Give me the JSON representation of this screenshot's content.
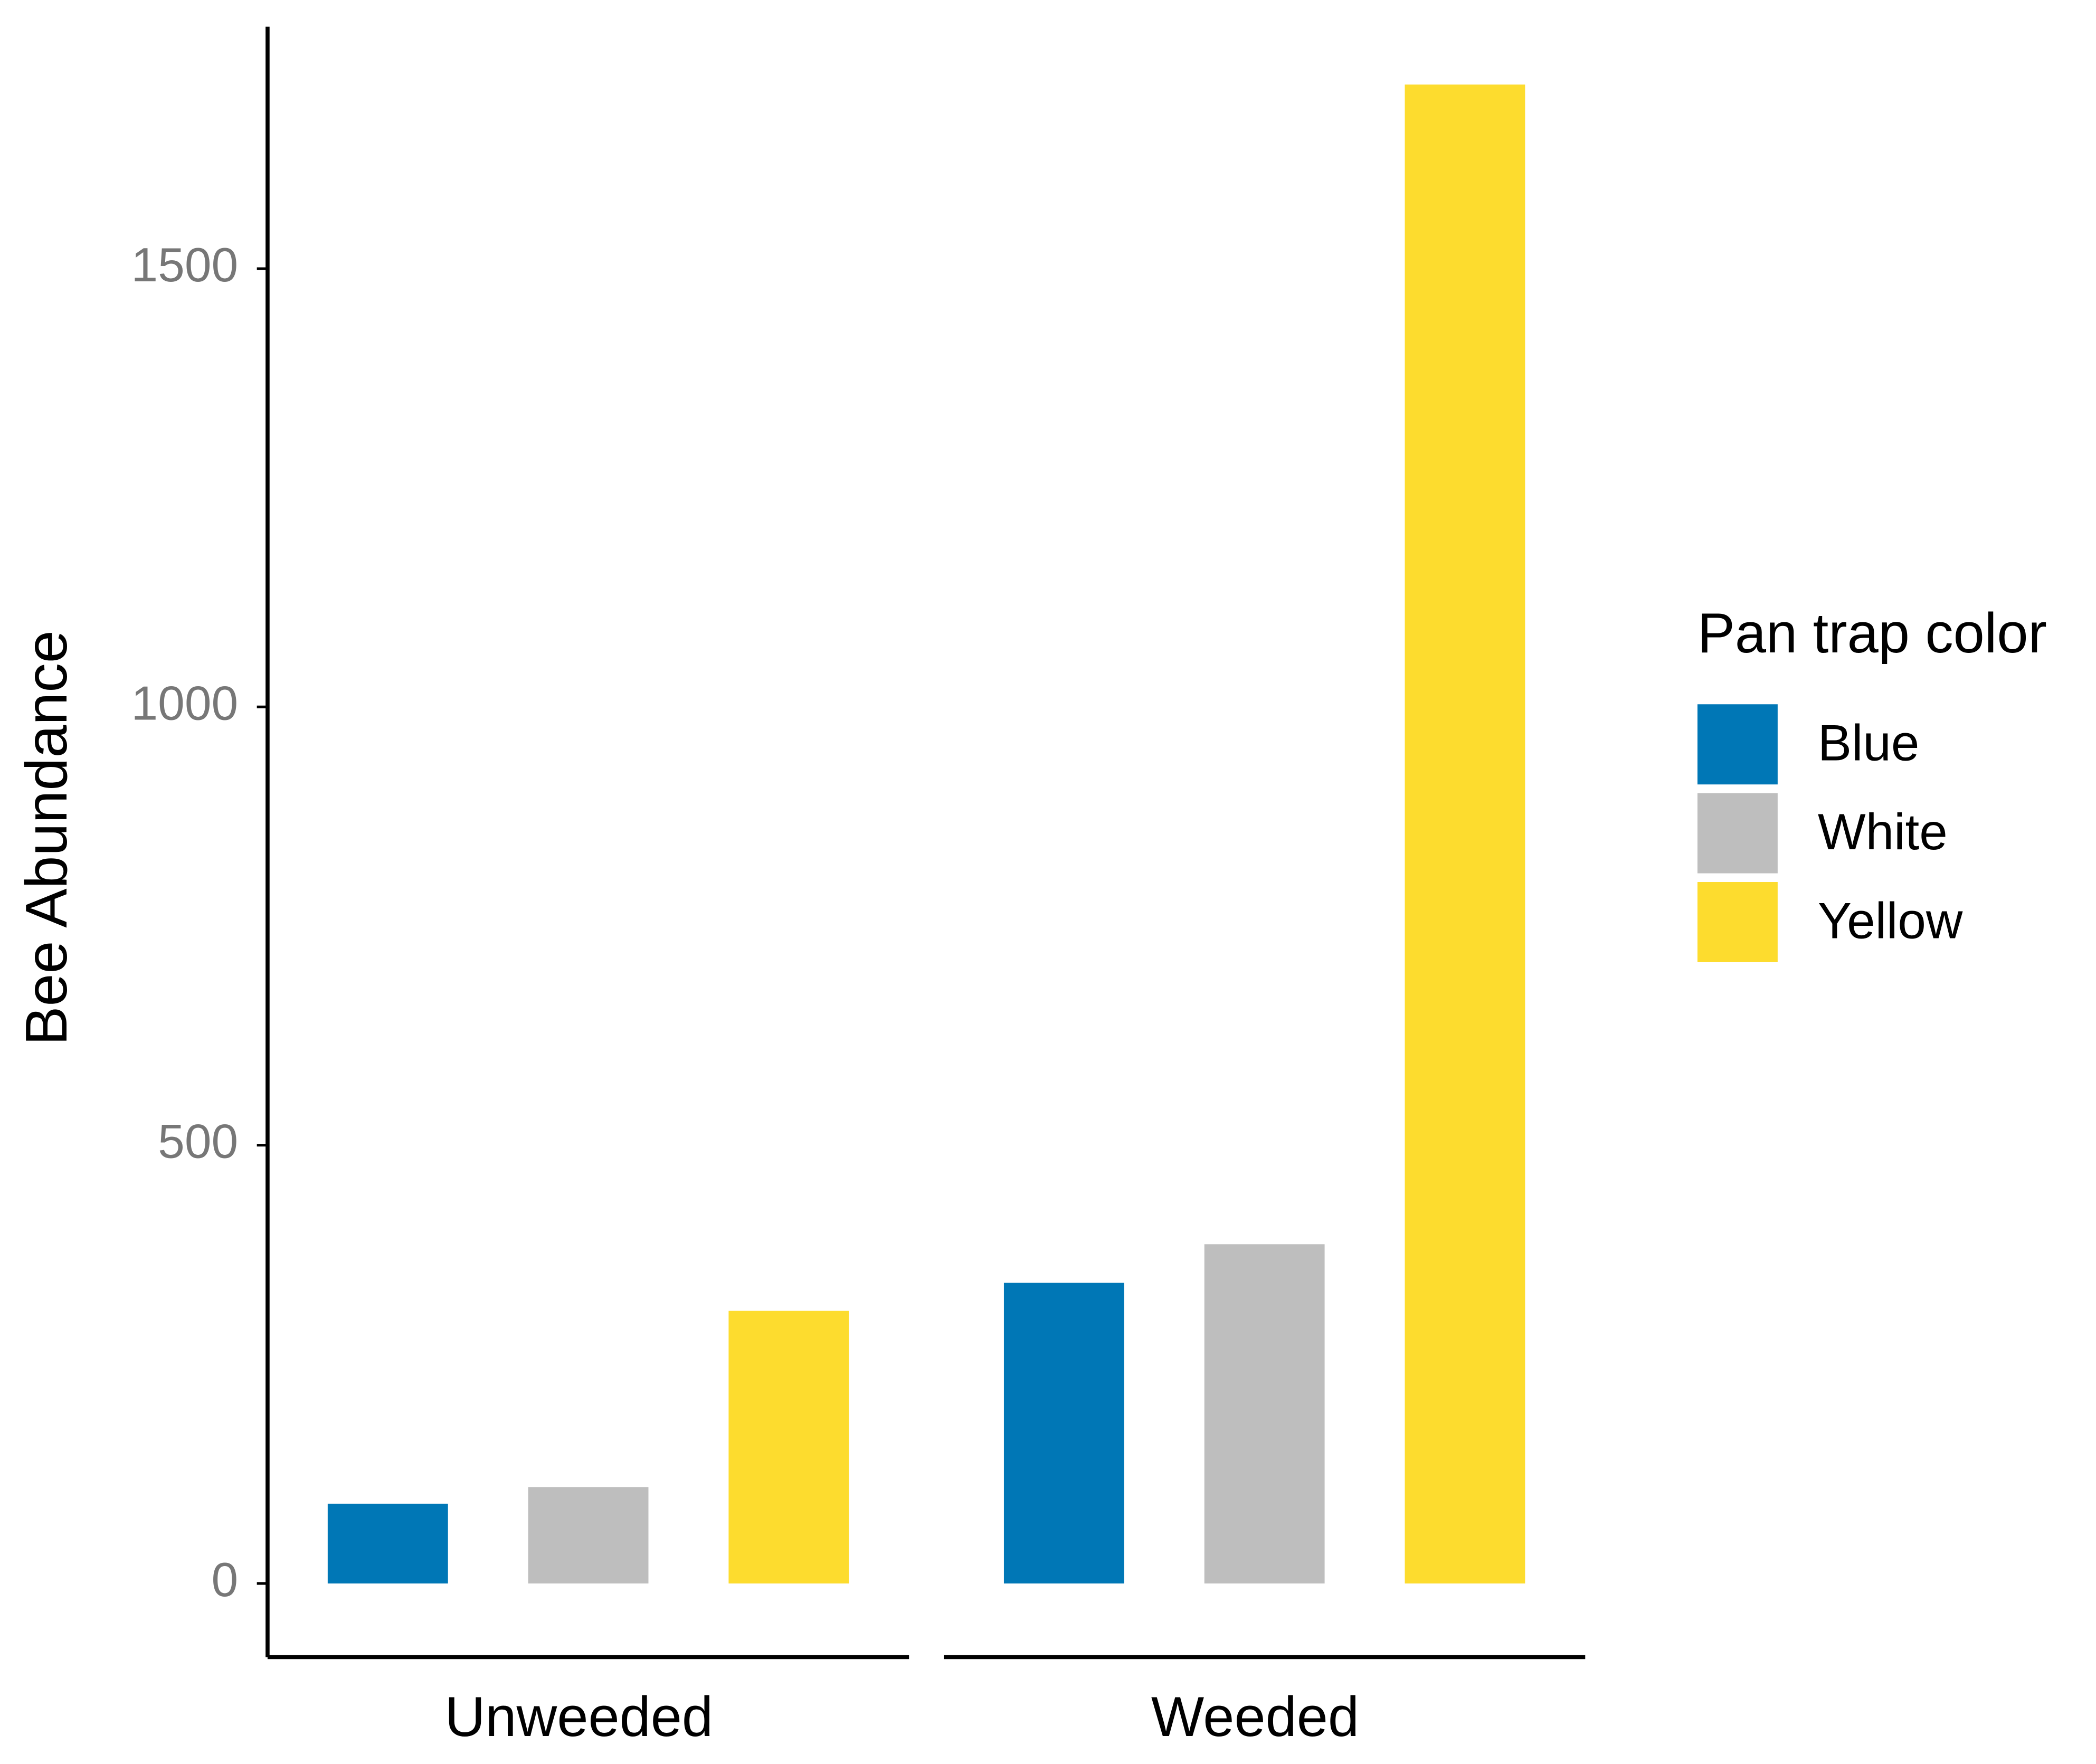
{
  "chart_data": {
    "type": "bar",
    "y_label": "Bee Abundance",
    "categories": [
      "Unweeded",
      "Weeded"
    ],
    "series": [
      {
        "name": "Blue",
        "color": "#0077b6",
        "values": [
          91,
          343
        ]
      },
      {
        "name": "White",
        "color": "#bebebe",
        "values": [
          110,
          387
        ]
      },
      {
        "name": "Yellow",
        "color": "#fddc2e",
        "values": [
          311,
          1710
        ]
      }
    ],
    "ylim": [
      -84,
      1776
    ],
    "yticks": [
      0,
      500,
      1000,
      1500
    ],
    "legend_title": "Pan trap color",
    "legend_position": "right"
  }
}
